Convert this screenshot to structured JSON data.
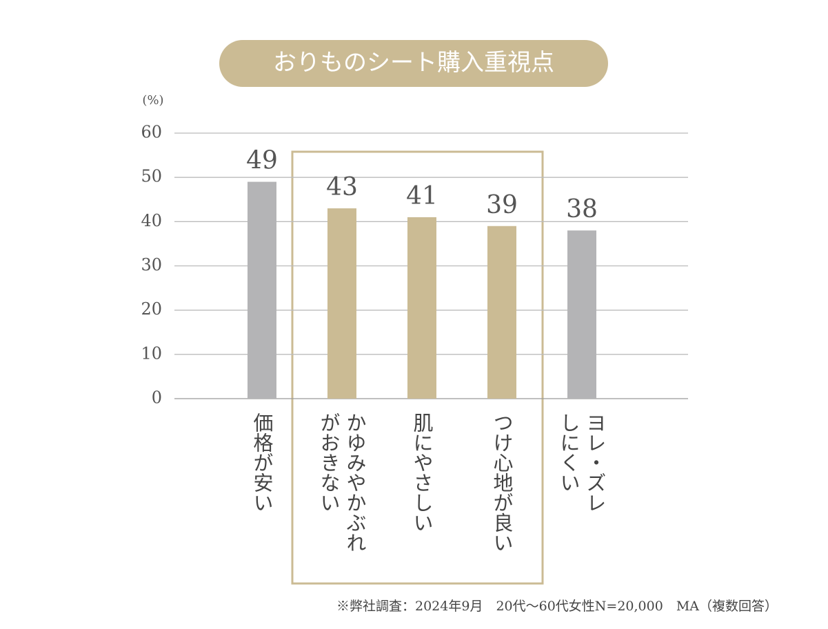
{
  "chart_data": {
    "type": "bar",
    "title": "おりものシート購入重視点",
    "unit_label": "(%)",
    "categories": [
      [
        "価格が安い"
      ],
      [
        "かゆみやかぶれ",
        "がおきない"
      ],
      [
        "肌にやさしい"
      ],
      [
        "つけ心地が良い"
      ],
      [
        "ヨレ・ズレ",
        "しにくい"
      ]
    ],
    "values": [
      49,
      43,
      41,
      39,
      38
    ],
    "colors": [
      "#b4b4b6",
      "#cbbb94",
      "#cbbb94",
      "#cbbb94",
      "#b4b4b6"
    ],
    "ylim": [
      0,
      60
    ],
    "yticks": [
      0,
      10,
      20,
      30,
      40,
      50,
      60
    ],
    "grid": true,
    "footnote": "※弊社調査：2024年9月　20代～60代女性N=20,000　MA（複数回答）"
  }
}
